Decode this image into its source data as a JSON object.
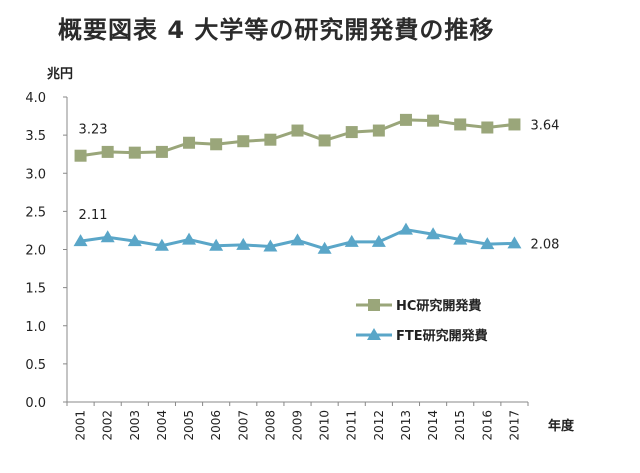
{
  "chart_data": {
    "type": "line",
    "title": "概要図表 4 大学等の研究開発費の推移",
    "ylabel": "兆円",
    "xlabel": "年度",
    "ylim": [
      0.0,
      4.0
    ],
    "yticks": [
      "0.0",
      "0.5",
      "1.0",
      "1.5",
      "2.0",
      "2.5",
      "3.0",
      "3.5",
      "4.0"
    ],
    "categories": [
      "2001",
      "2002",
      "2003",
      "2004",
      "2005",
      "2006",
      "2007",
      "2008",
      "2009",
      "2010",
      "2011",
      "2012",
      "2013",
      "2014",
      "2015",
      "2016",
      "2017"
    ],
    "grid": false,
    "legend_position": "right",
    "series": [
      {
        "name": "HC研究開発費",
        "color": "#9aa67a",
        "marker": "square",
        "values": [
          3.23,
          3.28,
          3.27,
          3.28,
          3.4,
          3.38,
          3.42,
          3.44,
          3.56,
          3.43,
          3.54,
          3.56,
          3.7,
          3.69,
          3.64,
          3.6,
          3.64
        ]
      },
      {
        "name": "FTE研究開発費",
        "color": "#5aa6c8",
        "marker": "triangle",
        "values": [
          2.11,
          2.16,
          2.11,
          2.05,
          2.13,
          2.05,
          2.06,
          2.04,
          2.12,
          2.01,
          2.1,
          2.1,
          2.26,
          2.2,
          2.13,
          2.07,
          2.08
        ]
      }
    ],
    "annotations": [
      {
        "text": "3.23",
        "series": 0,
        "index": 0
      },
      {
        "text": "3.64",
        "series": 0,
        "index": 16
      },
      {
        "text": "2.11",
        "series": 1,
        "index": 0
      },
      {
        "text": "2.08",
        "series": 1,
        "index": 16
      }
    ]
  }
}
